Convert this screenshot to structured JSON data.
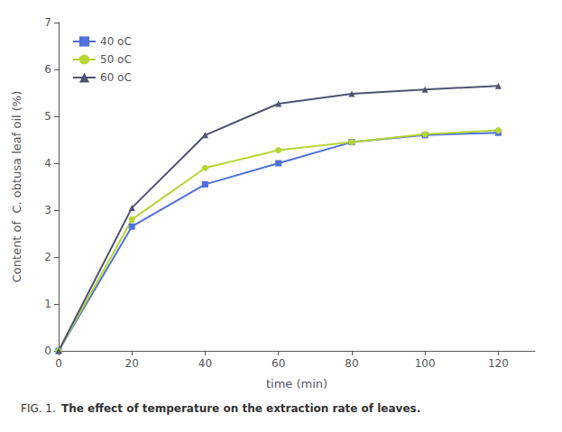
{
  "chart_data": {
    "type": "line",
    "xlabel": "time (min)",
    "ylabel": "Content of  C. obtusa leaf oil (%)",
    "annotations": [
      "FIG. 1.",
      "The effect of temperature on the extraction rate of leaves."
    ],
    "x": [
      0,
      20,
      40,
      60,
      80,
      100,
      120
    ],
    "series": [
      {
        "name": "40 oC",
        "values": [
          0,
          2.65,
          3.55,
          4.0,
          4.45,
          4.6,
          4.65
        ],
        "marker": "square"
      },
      {
        "name": "50 oC",
        "values": [
          0,
          2.8,
          3.9,
          4.28,
          4.45,
          4.62,
          4.7
        ],
        "marker": "circle"
      },
      {
        "name": "60 oC",
        "values": [
          0,
          3.05,
          4.6,
          5.27,
          5.48,
          5.57,
          5.65
        ],
        "marker": "triangle"
      }
    ],
    "xlim": [
      0,
      130
    ],
    "ylim": [
      0,
      7
    ],
    "xticks": [
      0,
      20,
      40,
      60,
      80,
      100,
      120
    ],
    "yticks": [
      0,
      1,
      2,
      3,
      4,
      5,
      6,
      7
    ],
    "legend": "upper left",
    "grid": false
  }
}
